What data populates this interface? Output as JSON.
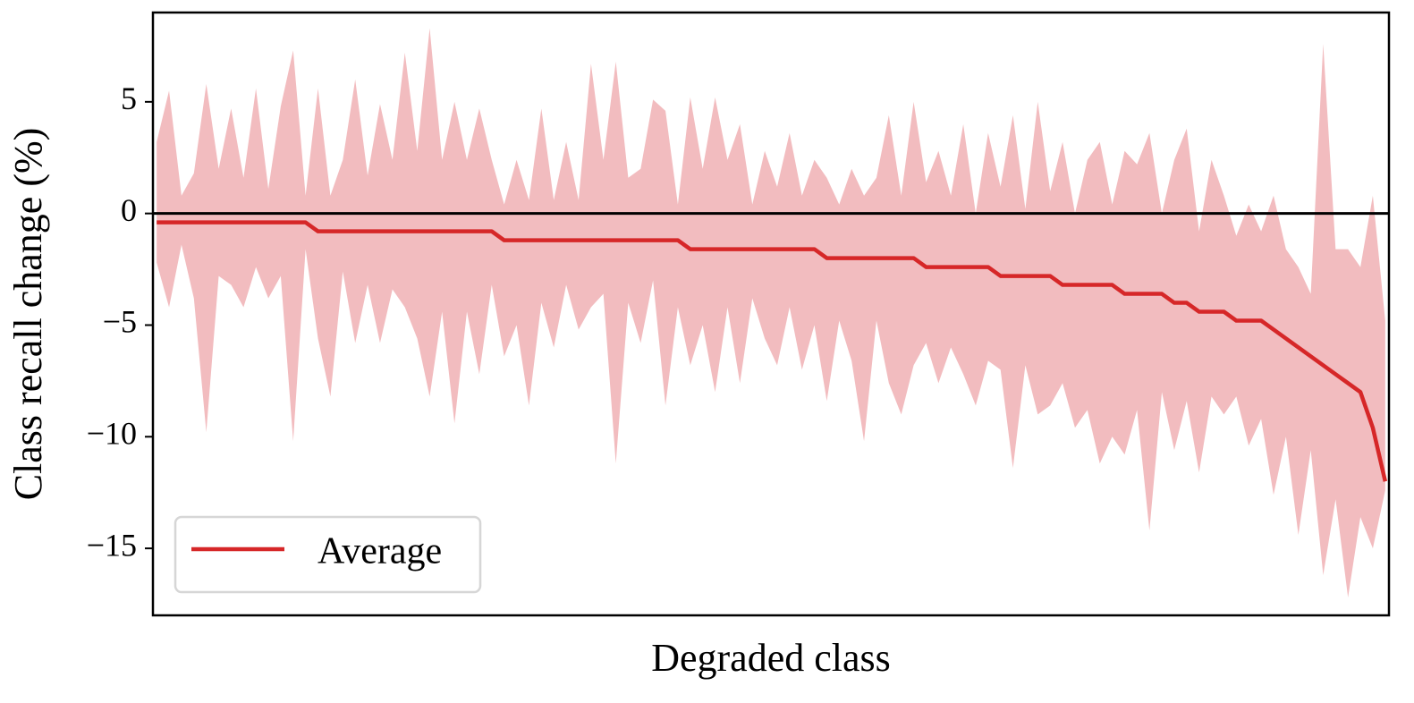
{
  "chart_data": {
    "type": "line",
    "x_label": "Degraded class",
    "y_label": "Class recall change (%)",
    "x": [
      0,
      1,
      2,
      3,
      4,
      5,
      6,
      7,
      8,
      9,
      10,
      11,
      12,
      13,
      14,
      15,
      16,
      17,
      18,
      19,
      20,
      21,
      22,
      23,
      24,
      25,
      26,
      27,
      28,
      29,
      30,
      31,
      32,
      33,
      34,
      35,
      36,
      37,
      38,
      39,
      40,
      41,
      42,
      43,
      44,
      45,
      46,
      47,
      48,
      49,
      50,
      51,
      52,
      53,
      54,
      55,
      56,
      57,
      58,
      59,
      60,
      61,
      62,
      63,
      64,
      65,
      66,
      67,
      68,
      69,
      70,
      71,
      72,
      73,
      74,
      75,
      76,
      77,
      78,
      79,
      80,
      81,
      82,
      83,
      84,
      85,
      86,
      87,
      88,
      89,
      90,
      91,
      92,
      93,
      94,
      95,
      96,
      97,
      98,
      99
    ],
    "xlim": [
      -0.3,
      99.3
    ],
    "ylim": [
      -18,
      9
    ],
    "yticks": [
      {
        "value": -15,
        "label": "−15"
      },
      {
        "value": -10,
        "label": "−10"
      },
      {
        "value": -5,
        "label": "−5"
      },
      0,
      5
    ],
    "hline": 0,
    "legend": "lower left",
    "series": [
      {
        "name": "Average",
        "color": "#d62728",
        "values": [
          -0.4,
          -0.4,
          -0.4,
          -0.4,
          -0.4,
          -0.4,
          -0.4,
          -0.4,
          -0.4,
          -0.4,
          -0.4,
          -0.4,
          -0.4,
          -0.8,
          -0.8,
          -0.8,
          -0.8,
          -0.8,
          -0.8,
          -0.8,
          -0.8,
          -0.8,
          -0.8,
          -0.8,
          -0.8,
          -0.8,
          -0.8,
          -0.8,
          -1.2,
          -1.2,
          -1.2,
          -1.2,
          -1.2,
          -1.2,
          -1.2,
          -1.2,
          -1.2,
          -1.2,
          -1.2,
          -1.2,
          -1.2,
          -1.2,
          -1.2,
          -1.6,
          -1.6,
          -1.6,
          -1.6,
          -1.6,
          -1.6,
          -1.6,
          -1.6,
          -1.6,
          -1.6,
          -1.6,
          -2.0,
          -2.0,
          -2.0,
          -2.0,
          -2.0,
          -2.0,
          -2.0,
          -2.0,
          -2.4,
          -2.4,
          -2.4,
          -2.4,
          -2.4,
          -2.4,
          -2.8,
          -2.8,
          -2.8,
          -2.8,
          -2.8,
          -3.2,
          -3.2,
          -3.2,
          -3.2,
          -3.2,
          -3.6,
          -3.6,
          -3.6,
          -3.6,
          -4.0,
          -4.0,
          -4.4,
          -4.4,
          -4.4,
          -4.8,
          -4.8,
          -4.8,
          -5.2,
          -5.6,
          -6.0,
          -6.4,
          -6.8,
          -7.2,
          -7.6,
          -8.0,
          -9.6,
          -12.0
        ]
      }
    ],
    "band": {
      "color": "#f2bcbf",
      "upper": [
        3.2,
        5.5,
        0.8,
        1.8,
        5.8,
        2.0,
        4.7,
        1.6,
        5.6,
        1.1,
        4.8,
        7.3,
        0.8,
        5.6,
        0.8,
        2.4,
        6.0,
        1.7,
        4.9,
        2.4,
        7.2,
        2.8,
        8.3,
        2.4,
        5.0,
        2.4,
        4.7,
        2.4,
        0.4,
        2.4,
        0.6,
        4.7,
        0.6,
        3.2,
        0.6,
        6.7,
        2.4,
        6.8,
        1.6,
        2.0,
        5.1,
        4.6,
        0.4,
        5.2,
        2.0,
        5.2,
        2.4,
        4.0,
        0.4,
        2.8,
        1.2,
        3.6,
        0.8,
        2.4,
        1.6,
        0.4,
        2.0,
        0.8,
        1.6,
        4.4,
        0.8,
        5.0,
        1.4,
        2.8,
        0.8,
        4.0,
        0.0,
        3.6,
        1.2,
        4.4,
        0.2,
        5.0,
        1.0,
        3.2,
        0.0,
        2.4,
        3.2,
        0.4,
        2.8,
        2.2,
        3.6,
        0.0,
        2.4,
        3.8,
        -0.8,
        2.4,
        0.8,
        -1.0,
        0.4,
        -0.8,
        0.8,
        -1.6,
        -2.4,
        -3.6,
        7.6,
        -1.6,
        -1.6,
        -2.4,
        0.8,
        -4.8
      ],
      "lower": [
        -2.2,
        -4.2,
        -1.4,
        -3.8,
        -9.8,
        -2.8,
        -3.2,
        -4.2,
        -2.4,
        -3.8,
        -2.8,
        -10.2,
        -1.6,
        -5.6,
        -8.2,
        -2.6,
        -5.8,
        -3.2,
        -5.8,
        -3.4,
        -4.2,
        -5.6,
        -8.2,
        -4.4,
        -9.4,
        -4.4,
        -7.2,
        -3.2,
        -6.4,
        -5.0,
        -8.6,
        -4.0,
        -6.0,
        -3.2,
        -5.2,
        -4.2,
        -3.6,
        -11.2,
        -4.0,
        -5.8,
        -3.0,
        -8.6,
        -4.2,
        -6.8,
        -5.0,
        -8.0,
        -4.2,
        -7.6,
        -3.8,
        -5.6,
        -6.8,
        -4.2,
        -7.0,
        -5.0,
        -8.4,
        -4.8,
        -6.6,
        -10.2,
        -4.8,
        -7.6,
        -9.0,
        -6.8,
        -5.8,
        -7.6,
        -6.0,
        -7.2,
        -8.6,
        -6.6,
        -7.0,
        -11.4,
        -6.8,
        -9.0,
        -8.6,
        -7.6,
        -9.6,
        -8.8,
        -11.2,
        -10.0,
        -10.8,
        -8.8,
        -14.2,
        -8.0,
        -10.6,
        -8.4,
        -11.6,
        -8.2,
        -9.0,
        -8.2,
        -10.4,
        -9.2,
        -12.6,
        -10.0,
        -14.4,
        -10.6,
        -16.2,
        -12.8,
        -17.2,
        -13.6,
        -15.0,
        -12.4
      ]
    }
  }
}
